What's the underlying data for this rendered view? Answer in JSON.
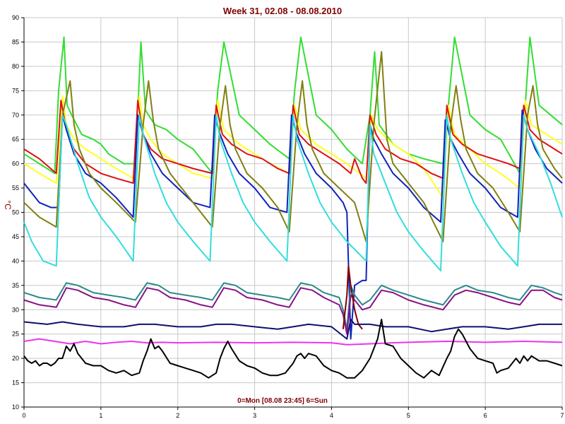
{
  "chart_data": {
    "type": "line",
    "title": "Week 31, 02.08 - 08.08.2010",
    "xlabel": "0=Mon [08.08 23:45] 6=Sun",
    "ylabel": "°C",
    "xlim": [
      0,
      7
    ],
    "ylim": [
      10,
      90
    ],
    "xticks": [
      0,
      1,
      2,
      3,
      4,
      5,
      6,
      7
    ],
    "yticks": [
      10,
      15,
      20,
      25,
      30,
      35,
      40,
      45,
      50,
      55,
      60,
      65,
      70,
      75,
      80,
      85,
      90
    ],
    "grid": true,
    "series": [
      {
        "color": "#33dd33",
        "x": [
          0,
          0.2,
          0.4,
          0.45,
          0.52,
          0.56,
          0.62,
          0.75,
          0.9,
          1.0,
          1.1,
          1.3,
          1.45,
          1.52,
          1.58,
          1.7,
          1.85,
          2.0,
          2.2,
          2.45,
          2.52,
          2.6,
          2.8,
          3.0,
          3.2,
          3.45,
          3.52,
          3.6,
          3.8,
          4.0,
          4.2,
          4.4,
          4.5,
          4.56,
          4.62,
          4.8,
          5.0,
          5.2,
          5.45,
          5.52,
          5.6,
          5.8,
          6.0,
          6.2,
          6.45,
          6.52,
          6.58,
          6.7,
          6.85,
          7.0
        ],
        "values": [
          62,
          60,
          58,
          75,
          86,
          72,
          70,
          66,
          65,
          64,
          62,
          60,
          60,
          85,
          71,
          68,
          67,
          65,
          63,
          58,
          75,
          85,
          70,
          67,
          64,
          61,
          75,
          86,
          70,
          67,
          63,
          60,
          70,
          83,
          68,
          64,
          62,
          61,
          60,
          72,
          86,
          70,
          67,
          65,
          58,
          72,
          86,
          72,
          70,
          68
        ]
      },
      {
        "color": "#ffff22",
        "x": [
          0,
          0.2,
          0.42,
          0.5,
          0.55,
          0.65,
          0.8,
          1.0,
          1.2,
          1.42,
          1.5,
          1.55,
          1.65,
          1.8,
          2.0,
          2.2,
          2.45,
          2.52,
          2.6,
          2.8,
          3.0,
          3.2,
          3.45,
          3.52,
          3.6,
          3.8,
          4.0,
          4.2,
          4.45,
          4.52,
          4.6,
          4.8,
          5.0,
          5.2,
          5.45,
          5.52,
          5.6,
          5.8,
          6.0,
          6.2,
          6.45,
          6.52,
          6.6,
          6.8,
          7.0
        ],
        "values": [
          60,
          58,
          56,
          74,
          68,
          65,
          63,
          61,
          59,
          57,
          74,
          68,
          65,
          62,
          60,
          58,
          57,
          73,
          67,
          64,
          62,
          60,
          58,
          72,
          67,
          64,
          62,
          60,
          57,
          70,
          67,
          64,
          62,
          59,
          53,
          72,
          66,
          63,
          60,
          58,
          55,
          73,
          68,
          66,
          64
        ]
      },
      {
        "color": "#dd1111",
        "x": [
          0,
          0.2,
          0.42,
          0.48,
          0.55,
          0.65,
          0.8,
          1.0,
          1.2,
          1.42,
          1.48,
          1.55,
          1.65,
          1.8,
          2.0,
          2.2,
          2.45,
          2.5,
          2.58,
          2.7,
          2.9,
          3.1,
          3.3,
          3.45,
          3.5,
          3.58,
          3.7,
          3.9,
          4.1,
          4.25,
          4.3,
          4.4,
          4.45,
          4.5,
          4.58,
          4.7,
          4.9,
          5.1,
          5.3,
          5.45,
          5.5,
          5.58,
          5.7,
          5.9,
          6.1,
          6.3,
          6.45,
          6.5,
          6.58,
          6.7,
          6.9,
          7.0
        ],
        "values": [
          63,
          61,
          58,
          73,
          67,
          63,
          60,
          58,
          57,
          56,
          73,
          66,
          63,
          61,
          60,
          59,
          58,
          72,
          66,
          64,
          62,
          61,
          59,
          58,
          72,
          66,
          64,
          62,
          60,
          58,
          61,
          57,
          56,
          70,
          66,
          63,
          61,
          60,
          58,
          57,
          72,
          66,
          64,
          62,
          61,
          60,
          59,
          72,
          67,
          65,
          63,
          62
        ]
      },
      {
        "color": "#1122bb",
        "x": [
          0,
          0.2,
          0.35,
          0.45,
          0.5,
          0.55,
          0.65,
          0.8,
          1.0,
          1.2,
          1.42,
          1.48,
          1.55,
          1.65,
          1.8,
          2.0,
          2.2,
          2.42,
          2.48,
          2.55,
          2.65,
          2.8,
          3.0,
          3.2,
          3.42,
          3.48,
          3.55,
          3.65,
          3.8,
          4.0,
          4.15,
          4.2,
          4.25,
          4.3,
          4.4,
          4.45,
          4.5,
          4.55,
          4.65,
          4.8,
          5.0,
          5.2,
          5.42,
          5.48,
          5.55,
          5.65,
          5.8,
          6.0,
          6.2,
          6.42,
          6.48,
          6.55,
          6.65,
          6.8,
          7.0
        ],
        "values": [
          56,
          52,
          51,
          51,
          70,
          67,
          62,
          58,
          56,
          53,
          49,
          70,
          66,
          62,
          58,
          55,
          52,
          51,
          70,
          66,
          62,
          58,
          55,
          51,
          50,
          70,
          66,
          62,
          58,
          55,
          52,
          50,
          24,
          35,
          36,
          36,
          68,
          65,
          62,
          58,
          55,
          51,
          48,
          69,
          65,
          62,
          58,
          55,
          51,
          49,
          71,
          67,
          63,
          59,
          56
        ]
      },
      {
        "color": "#808010",
        "x": [
          0,
          0.2,
          0.42,
          0.5,
          0.6,
          0.65,
          0.72,
          0.85,
          1.0,
          1.2,
          1.45,
          1.55,
          1.62,
          1.68,
          1.75,
          1.9,
          2.0,
          2.2,
          2.45,
          2.55,
          2.62,
          2.68,
          2.75,
          2.9,
          3.1,
          3.3,
          3.45,
          3.55,
          3.62,
          3.68,
          3.75,
          3.9,
          4.1,
          4.3,
          4.45,
          4.55,
          4.65,
          4.72,
          4.8,
          5.0,
          5.2,
          5.45,
          5.55,
          5.62,
          5.68,
          5.75,
          5.9,
          6.1,
          6.3,
          6.45,
          6.55,
          6.62,
          6.68,
          6.75,
          6.9,
          7.0
        ],
        "values": [
          52,
          49,
          47,
          70,
          77,
          68,
          63,
          58,
          55,
          52,
          48,
          68,
          77,
          69,
          63,
          58,
          56,
          52,
          47,
          68,
          76,
          68,
          63,
          58,
          55,
          51,
          46,
          68,
          77,
          68,
          63,
          58,
          55,
          52,
          44,
          68,
          83,
          65,
          60,
          56,
          52,
          44,
          68,
          76,
          69,
          63,
          58,
          55,
          50,
          46,
          70,
          76,
          68,
          63,
          59,
          57
        ]
      },
      {
        "color": "#33dddd",
        "x": [
          0,
          0.1,
          0.25,
          0.42,
          0.5,
          0.55,
          0.7,
          0.85,
          1.0,
          1.2,
          1.42,
          1.5,
          1.55,
          1.7,
          1.85,
          2.0,
          2.2,
          2.42,
          2.5,
          2.55,
          2.7,
          2.85,
          3.0,
          3.2,
          3.42,
          3.5,
          3.55,
          3.7,
          3.85,
          4.0,
          4.2,
          4.45,
          4.5,
          4.55,
          4.7,
          4.85,
          5.0,
          5.2,
          5.42,
          5.5,
          5.55,
          5.7,
          5.85,
          6.0,
          6.2,
          6.42,
          6.5,
          6.55,
          6.7,
          6.85,
          7.0
        ],
        "values": [
          48,
          44,
          40,
          39,
          70,
          68,
          60,
          53,
          49,
          45,
          40,
          70,
          66,
          58,
          52,
          48,
          44,
          40,
          70,
          65,
          58,
          52,
          48,
          44,
          40,
          70,
          65,
          58,
          52,
          48,
          44,
          40,
          68,
          62,
          56,
          50,
          46,
          42,
          38,
          70,
          65,
          58,
          52,
          48,
          43,
          39,
          70,
          67,
          62,
          56,
          49
        ]
      },
      {
        "color": "#2a8a8a",
        "x": [
          0,
          0.2,
          0.42,
          0.55,
          0.7,
          0.9,
          1.1,
          1.3,
          1.45,
          1.6,
          1.75,
          1.9,
          2.1,
          2.3,
          2.45,
          2.6,
          2.75,
          2.9,
          3.1,
          3.3,
          3.45,
          3.6,
          3.75,
          3.9,
          4.1,
          4.15,
          4.2,
          4.25,
          4.3,
          4.4,
          4.5,
          4.65,
          4.8,
          5.0,
          5.2,
          5.45,
          5.6,
          5.75,
          5.9,
          6.1,
          6.3,
          6.45,
          6.6,
          6.75,
          6.9,
          7.0
        ],
        "values": [
          33.5,
          32.5,
          32,
          35.5,
          35,
          33.5,
          33,
          32.5,
          32,
          35.5,
          35,
          33.5,
          33,
          32.5,
          32,
          35.5,
          35,
          33.5,
          33,
          32.5,
          32,
          35.5,
          35,
          33.5,
          32.5,
          30,
          26,
          35,
          33,
          31,
          32,
          35,
          34,
          33,
          32,
          31,
          34,
          35,
          34,
          33.5,
          32.5,
          32,
          35,
          34.5,
          33.5,
          33
        ]
      },
      {
        "color": "#881188",
        "x": [
          0,
          0.2,
          0.42,
          0.55,
          0.7,
          0.9,
          1.1,
          1.3,
          1.45,
          1.6,
          1.75,
          1.9,
          2.1,
          2.3,
          2.45,
          2.6,
          2.75,
          2.9,
          3.1,
          3.3,
          3.45,
          3.6,
          3.75,
          3.9,
          4.1,
          4.15,
          4.2,
          4.25,
          4.3,
          4.4,
          4.5,
          4.65,
          4.8,
          5.0,
          5.2,
          5.45,
          5.6,
          5.75,
          5.9,
          6.1,
          6.3,
          6.45,
          6.6,
          6.75,
          6.9,
          7.0
        ],
        "values": [
          32,
          31,
          30.5,
          34.5,
          34,
          32.5,
          32,
          31,
          30.5,
          34.5,
          34,
          32.5,
          32,
          31,
          30.5,
          34.5,
          34,
          32.5,
          32,
          31,
          30.5,
          34.5,
          34,
          32.5,
          31,
          29,
          25,
          33,
          32,
          30,
          30.5,
          34,
          33.5,
          32,
          31,
          30,
          33,
          34,
          33.5,
          32.5,
          31.5,
          31,
          34,
          34,
          32.5,
          32
        ]
      },
      {
        "color": "#800000",
        "x": [
          4.15,
          4.2,
          4.22,
          4.25,
          4.3,
          4.35,
          4.4
        ],
        "values": [
          26,
          33,
          39,
          35,
          30,
          27,
          26
        ]
      },
      {
        "color": "#101070",
        "x": [
          0,
          0.3,
          0.5,
          0.7,
          1.0,
          1.3,
          1.5,
          1.7,
          2.0,
          2.3,
          2.5,
          2.7,
          3.0,
          3.3,
          3.5,
          3.7,
          4.0,
          4.2,
          4.25,
          4.3,
          4.5,
          4.7,
          5.0,
          5.3,
          5.5,
          5.7,
          6.0,
          6.3,
          6.5,
          6.7,
          7.0
        ],
        "values": [
          27.5,
          27,
          27.5,
          27,
          26.5,
          26.5,
          27,
          27,
          26.5,
          26.5,
          27,
          27,
          26.5,
          26,
          26.5,
          27,
          26.5,
          24,
          28,
          27,
          27,
          26.5,
          26.5,
          25.5,
          26,
          26.5,
          26.5,
          26,
          26.5,
          27,
          27
        ]
      },
      {
        "color": "#ee33ee",
        "x": [
          0,
          0.2,
          0.4,
          0.6,
          0.8,
          1.0,
          1.2,
          1.4,
          1.6,
          1.8,
          2.0,
          2.5,
          3.0,
          3.5,
          4.0,
          4.2,
          4.5,
          4.8,
          5.0,
          5.5,
          6.0,
          6.5,
          7.0
        ],
        "values": [
          23.5,
          24,
          23.5,
          23,
          23.5,
          23,
          23.3,
          23.5,
          23.2,
          23.3,
          23.2,
          23.3,
          23.2,
          23.3,
          23.2,
          22.8,
          23,
          23.2,
          23.3,
          23.5,
          23.3,
          23.5,
          23.3
        ]
      },
      {
        "color": "#000000",
        "x": [
          0,
          0.05,
          0.1,
          0.15,
          0.2,
          0.25,
          0.3,
          0.35,
          0.4,
          0.45,
          0.5,
          0.55,
          0.6,
          0.65,
          0.7,
          0.8,
          0.9,
          1.0,
          1.1,
          1.2,
          1.3,
          1.4,
          1.5,
          1.55,
          1.6,
          1.65,
          1.7,
          1.75,
          1.8,
          1.9,
          2.0,
          2.1,
          2.2,
          2.3,
          2.4,
          2.5,
          2.55,
          2.6,
          2.65,
          2.7,
          2.8,
          2.9,
          3.0,
          3.1,
          3.2,
          3.3,
          3.4,
          3.5,
          3.55,
          3.6,
          3.65,
          3.7,
          3.8,
          3.9,
          4.0,
          4.1,
          4.2,
          4.3,
          4.4,
          4.5,
          4.55,
          4.6,
          4.65,
          4.7,
          4.8,
          4.9,
          5.0,
          5.1,
          5.2,
          5.3,
          5.4,
          5.5,
          5.55,
          5.6,
          5.65,
          5.7,
          5.8,
          5.9,
          6.0,
          6.1,
          6.15,
          6.2,
          6.3,
          6.4,
          6.45,
          6.5,
          6.55,
          6.6,
          6.7,
          6.8,
          6.9,
          7.0
        ],
        "values": [
          20.5,
          19.5,
          19,
          19.5,
          18.5,
          19,
          19,
          18.5,
          19,
          20,
          20,
          22.5,
          21.5,
          23,
          21,
          19,
          18.5,
          18.5,
          17.5,
          17,
          17.5,
          16.5,
          17,
          19.5,
          21.5,
          24,
          22,
          22.5,
          21.5,
          19,
          18.5,
          18,
          17.5,
          17,
          16,
          17,
          20,
          22,
          23.5,
          22,
          19.5,
          18.5,
          18,
          17,
          16.5,
          16.5,
          17,
          19,
          20.5,
          21,
          20,
          21,
          20.5,
          18.5,
          17.5,
          17,
          16,
          16,
          17.5,
          20,
          22,
          24,
          28,
          23,
          22.5,
          20,
          18.5,
          17,
          16,
          17.5,
          16.5,
          20,
          21.5,
          24.5,
          26,
          25,
          22,
          20,
          19.5,
          19,
          17,
          17.5,
          18,
          20,
          19,
          20.5,
          19.5,
          20.5,
          19.5,
          19.5,
          19,
          18.5
        ]
      }
    ]
  }
}
